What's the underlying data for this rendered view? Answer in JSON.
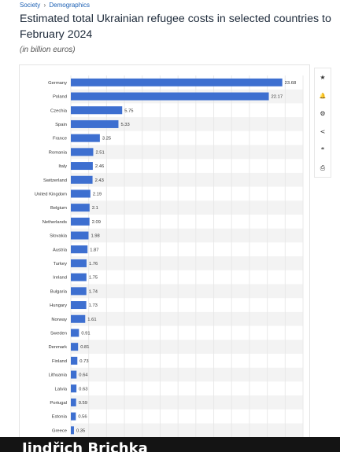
{
  "breadcrumb": {
    "items": [
      "Society",
      "Demographics"
    ],
    "separator": "›"
  },
  "header": {
    "title": "Estimated total Ukrainian refugee costs in selected countries to February 2024",
    "subtitle": "(in billion euros)"
  },
  "toolbar": {
    "icons": [
      "star-icon",
      "bell-icon",
      "gear-icon",
      "share-icon",
      "quote-icon",
      "print-icon"
    ],
    "glyphs": [
      "★",
      "🔔",
      "⚙",
      "<",
      "❝",
      "⎙"
    ]
  },
  "bottom_banner": {
    "text": "Jindřich Brichka"
  },
  "colors": {
    "bar": "#3d6fd0",
    "grid": "#e9e9e9",
    "row_band": "#f3f3f3",
    "label": "#333333"
  },
  "chart_data": {
    "type": "bar",
    "orientation": "horizontal",
    "title": "Estimated total Ukrainian refugee costs in selected countries to February 2024",
    "subtitle": "(in billion euros)",
    "xlabel": "",
    "ylabel": "",
    "xlim": [
      0,
      26
    ],
    "grid": true,
    "categories": [
      "Germany",
      "Poland",
      "Czechia",
      "Spain",
      "France",
      "Romania",
      "Italy",
      "Switzerland",
      "United Kingdom",
      "Belgium",
      "Netherlands",
      "Slovakia",
      "Austria",
      "Turkey",
      "Ireland",
      "Bulgaria",
      "Hungary",
      "Norway",
      "Sweden",
      "Denmark",
      "Finland",
      "Lithuania",
      "Latvia",
      "Portugal",
      "Estonia",
      "Greece"
    ],
    "values": [
      23.68,
      22.17,
      5.75,
      5.33,
      3.25,
      2.51,
      2.46,
      2.43,
      2.19,
      2.1,
      2.09,
      1.98,
      1.87,
      1.76,
      1.75,
      1.74,
      1.73,
      1.61,
      0.91,
      0.81,
      0.73,
      0.64,
      0.63,
      0.59,
      0.56,
      0.35
    ],
    "value_labels": [
      "23.68",
      "22.17",
      "5.75",
      "5.33",
      "3.25",
      "2.51",
      "2.46",
      "2.43",
      "2.19",
      "2.1",
      "2.09",
      "1.98",
      "1.87",
      "1.76",
      "1.75",
      "1.74",
      "1.73",
      "1.61",
      "0.91",
      "0.81",
      "0.73",
      "0.64",
      "0.63",
      "0.59",
      "0.56",
      "0.35"
    ]
  }
}
